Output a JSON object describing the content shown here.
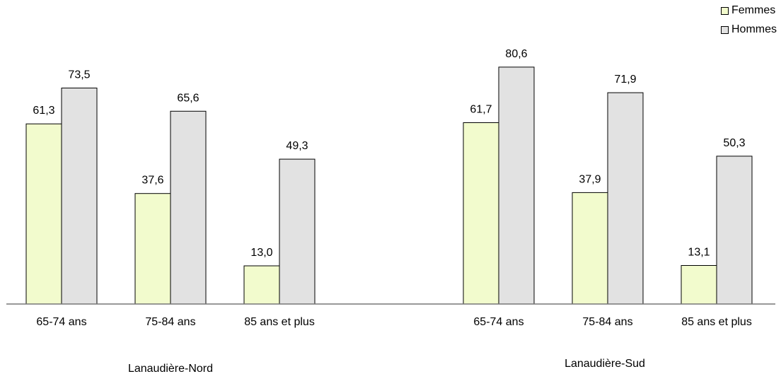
{
  "colors": {
    "femmes": "#F2FBCD",
    "hommes": "#E2E2E2",
    "border": "#000000",
    "axis": "#777777"
  },
  "legend": {
    "items": [
      "Femmes",
      "Hommes"
    ]
  },
  "chart_data": {
    "type": "bar",
    "groups": [
      "Lanaudière-Nord",
      "Lanaudière-Sud"
    ],
    "categories": [
      "65-74 ans",
      "75-84 ans",
      "85 ans et plus"
    ],
    "series": [
      {
        "name": "Femmes",
        "values": [
          [
            61.3,
            37.6,
            13.0
          ],
          [
            61.7,
            37.9,
            13.1
          ]
        ],
        "labels": [
          [
            "61,3",
            "37,6",
            "13,0"
          ],
          [
            "61,7",
            "37,9",
            "13,1"
          ]
        ]
      },
      {
        "name": "Hommes",
        "values": [
          [
            73.5,
            65.6,
            49.3
          ],
          [
            80.6,
            71.9,
            50.3
          ]
        ],
        "labels": [
          [
            "73,5",
            "65,6",
            "49,3"
          ],
          [
            "80,6",
            "71,9",
            "50,3"
          ]
        ]
      }
    ],
    "title": "",
    "xlabel": "",
    "ylabel": "",
    "ylim": [
      0,
      80.6
    ],
    "grid": false,
    "legend_position": "top-right"
  }
}
